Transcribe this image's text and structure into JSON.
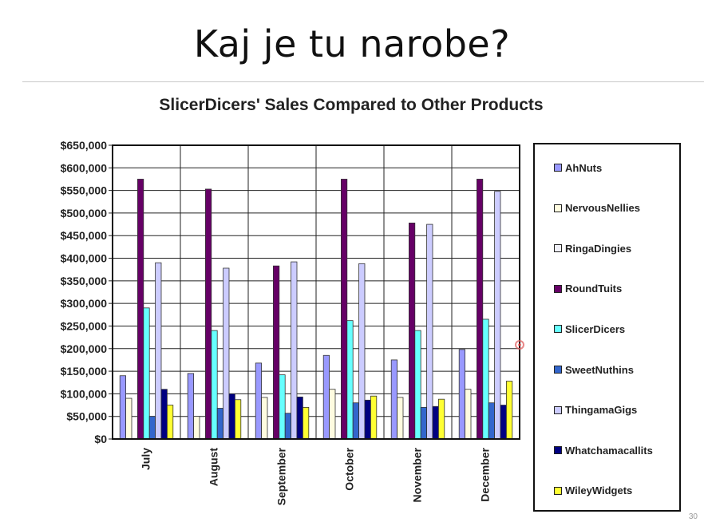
{
  "slide": {
    "title": "Kaj je tu narobe?",
    "page_number": "30"
  },
  "chart_data": {
    "type": "bar",
    "title": "SlicerDicers' Sales Compared to Other Products",
    "xlabel": "",
    "ylabel": "",
    "ylim": [
      0,
      650000
    ],
    "y_ticks": [
      "$0",
      "$50,000",
      "$100,000",
      "$150,000",
      "$200,000",
      "$250,000",
      "$300,000",
      "$350,000",
      "$400,000",
      "$450,000",
      "$500,000",
      "$550,000",
      "$600,000",
      "$650,000"
    ],
    "categories": [
      "July",
      "August",
      "September",
      "October",
      "November",
      "December"
    ],
    "grid": true,
    "legend_position": "right",
    "series": [
      {
        "name": "AhNuts",
        "color": "#9999ff",
        "values": [
          140000,
          145000,
          168000,
          185000,
          175000,
          198000
        ]
      },
      {
        "name": "NervousNellies",
        "color": "#fffce0",
        "values": [
          90000,
          50000,
          92000,
          110000,
          92000,
          110000
        ]
      },
      {
        "name": "RingaDingies",
        "color": "#f0f0f8",
        "values": [
          0,
          0,
          0,
          0,
          0,
          0
        ]
      },
      {
        "name": "RoundTuits",
        "color": "#660066",
        "values": [
          575000,
          553000,
          383000,
          575000,
          478000,
          575000
        ]
      },
      {
        "name": "SlicerDicers",
        "color": "#66ffff",
        "values": [
          290000,
          240000,
          142000,
          262000,
          240000,
          265000
        ]
      },
      {
        "name": "SweetNuthins",
        "color": "#3366cc",
        "values": [
          50000,
          68000,
          57000,
          80000,
          70000,
          80000
        ]
      },
      {
        "name": "ThingamaGigs",
        "color": "#ccccff",
        "values": [
          390000,
          378000,
          392000,
          388000,
          475000,
          548000
        ]
      },
      {
        "name": "Whatchamacallits",
        "color": "#000080",
        "values": [
          110000,
          100000,
          93000,
          86000,
          72000,
          75000
        ]
      },
      {
        "name": "WileyWidgets",
        "color": "#ffff33",
        "values": [
          75000,
          87000,
          70000,
          95000,
          88000,
          128000
        ]
      }
    ]
  }
}
